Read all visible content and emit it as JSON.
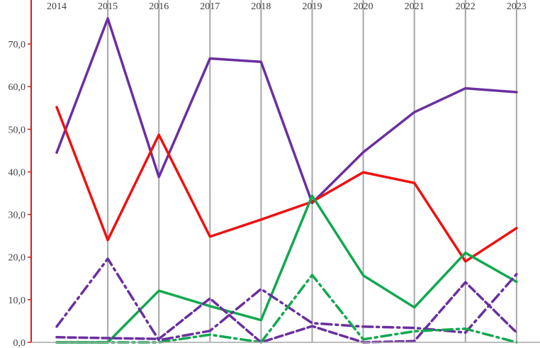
{
  "chart_data": {
    "type": "line",
    "title": "",
    "xlabel": "",
    "ylabel": "",
    "x": [
      "2014",
      "2015",
      "2016",
      "2017",
      "2018",
      "2019",
      "2020",
      "2021",
      "2022",
      "2023"
    ],
    "ylim": [
      0,
      77
    ],
    "yticks": [
      0,
      10,
      20,
      30,
      40,
      50,
      60,
      70
    ],
    "ytick_labels": [
      "0,0",
      "10,0",
      "20,0",
      "30,0",
      "40,0",
      "50,0",
      "60,0",
      "70,0"
    ],
    "xaxis_position": "top",
    "grid": "vertical",
    "legend": "none",
    "series": [
      {
        "color": "#6a2fa0",
        "style": "solid",
        "values": [
          44.5,
          76.0,
          38.8,
          66.6,
          65.8,
          32.7,
          44.6,
          54.0,
          59.6,
          58.7
        ]
      },
      {
        "color": "#ee1111",
        "style": "solid",
        "values": [
          55.2,
          24.0,
          48.7,
          24.8,
          28.8,
          33.0,
          39.9,
          37.4,
          19.0,
          26.8
        ]
      },
      {
        "color": "#11a84f",
        "style": "solid",
        "values": [
          0.0,
          0.0,
          12.1,
          8.5,
          5.2,
          34.4,
          15.7,
          8.2,
          21.0,
          14.2
        ]
      },
      {
        "color": "#6a2fa0",
        "style": "dashdot",
        "values": [
          3.7,
          19.6,
          0.5,
          2.7,
          12.5,
          4.5,
          3.7,
          3.4,
          2.3,
          16.0
        ]
      },
      {
        "color": "#6a2fa0",
        "style": "dashed",
        "values": [
          1.2,
          1.0,
          0.8,
          10.3,
          0.0,
          3.8,
          0.0,
          0.3,
          14.1,
          2.3
        ]
      },
      {
        "color": "#11a84f",
        "style": "dashdot",
        "values": [
          0.0,
          0.0,
          0.0,
          1.8,
          0.0,
          15.8,
          0.7,
          2.6,
          3.2,
          0.0
        ]
      }
    ]
  }
}
